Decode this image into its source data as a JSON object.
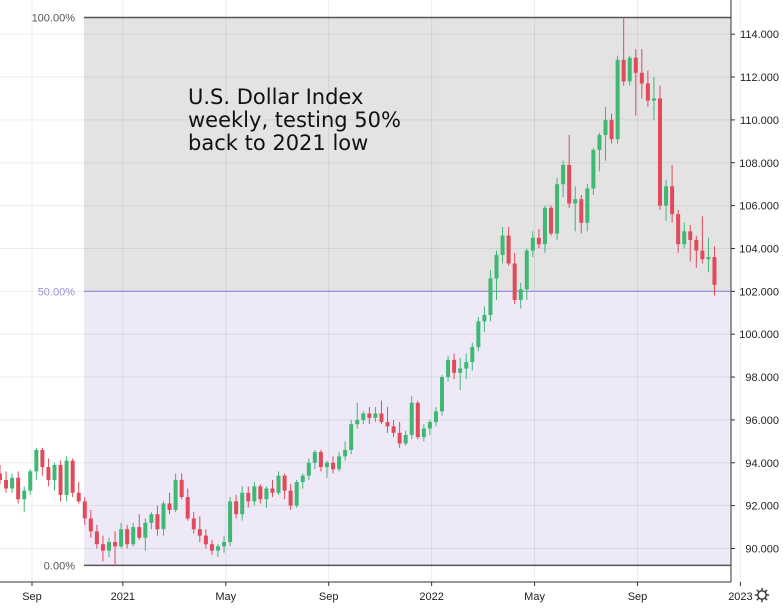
{
  "chart_data": {
    "type": "candlestick",
    "title": "",
    "annotation": "U.S. Dollar Index\nweekly, testing 50%\nback to 2021 low",
    "xlabel": "",
    "ylabel": "",
    "ylim": [
      89.0,
      117.0
    ],
    "grid": true,
    "y_ticks": [
      "90.000",
      "92.000",
      "94.000",
      "96.000",
      "98.000",
      "100.000",
      "102.000",
      "104.000",
      "106.000",
      "108.000",
      "110.000",
      "112.000",
      "114.000"
    ],
    "x_ticks": [
      {
        "label": "Sep",
        "i": 0
      },
      {
        "label": "2021",
        "i": 15
      },
      {
        "label": "May",
        "i": 32
      },
      {
        "label": "Sep",
        "i": 49
      },
      {
        "label": "2022",
        "i": 66
      },
      {
        "label": "May",
        "i": 83
      },
      {
        "label": "Sep",
        "i": 100
      },
      {
        "label": "2023",
        "i": 117
      }
    ],
    "fibonacci": {
      "levels": [
        {
          "label": "100.00%",
          "price": 114.78
        },
        {
          "label": "50.00%",
          "price": 102.0
        },
        {
          "label": "0.00%",
          "price": 89.21
        }
      ],
      "upper_zone_color": "#e3e3e3",
      "lower_zone_color": "#ede9f6",
      "line_color_ends": "#555555",
      "line_color_mid": "#9b8fd6"
    },
    "colors": {
      "up": "#3fb874",
      "down": "#e04a5b"
    },
    "candles": [
      [
        93.5,
        93.9,
        93.0,
        93.2
      ],
      [
        93.2,
        93.6,
        92.6,
        92.8
      ],
      [
        92.8,
        93.5,
        92.6,
        93.3
      ],
      [
        93.3,
        93.6,
        92.1,
        92.3
      ],
      [
        92.3,
        92.9,
        91.7,
        92.7
      ],
      [
        92.7,
        93.7,
        92.5,
        93.6
      ],
      [
        93.6,
        94.7,
        93.2,
        94.6
      ],
      [
        94.6,
        94.7,
        93.4,
        93.8
      ],
      [
        93.8,
        94.2,
        92.9,
        93.2
      ],
      [
        93.2,
        94.0,
        92.7,
        93.9
      ],
      [
        93.9,
        94.1,
        92.2,
        92.5
      ],
      [
        92.5,
        94.3,
        92.2,
        94.1
      ],
      [
        94.1,
        94.2,
        92.4,
        92.6
      ],
      [
        92.6,
        93.1,
        92.1,
        92.2
      ],
      [
        92.2,
        92.4,
        91.1,
        91.4
      ],
      [
        91.4,
        91.8,
        90.5,
        90.8
      ],
      [
        90.8,
        91.1,
        90.0,
        90.2
      ],
      [
        90.2,
        90.6,
        89.4,
        89.9
      ],
      [
        89.9,
        90.5,
        89.6,
        90.3
      ],
      [
        90.3,
        90.8,
        89.2,
        90.1
      ],
      [
        90.1,
        91.2,
        90.0,
        90.9
      ],
      [
        90.9,
        91.1,
        90.0,
        90.2
      ],
      [
        90.2,
        91.2,
        90.1,
        91.0
      ],
      [
        91.0,
        91.6,
        90.4,
        90.5
      ],
      [
        90.5,
        91.4,
        89.9,
        91.2
      ],
      [
        91.2,
        91.7,
        90.9,
        91.6
      ],
      [
        91.6,
        92.0,
        90.6,
        90.9
      ],
      [
        90.9,
        92.2,
        90.6,
        92.1
      ],
      [
        92.1,
        92.6,
        91.6,
        91.8
      ],
      [
        91.8,
        93.5,
        91.7,
        93.2
      ],
      [
        93.2,
        93.5,
        92.3,
        92.4
      ],
      [
        92.4,
        92.8,
        91.3,
        91.4
      ],
      [
        91.4,
        91.7,
        90.7,
        90.9
      ],
      [
        90.9,
        91.5,
        90.3,
        90.6
      ],
      [
        90.6,
        90.9,
        90.0,
        90.2
      ],
      [
        90.2,
        90.4,
        89.7,
        89.9
      ],
      [
        89.9,
        90.2,
        89.6,
        90.1
      ],
      [
        90.1,
        90.6,
        89.8,
        90.3
      ],
      [
        90.3,
        92.4,
        90.1,
        92.2
      ],
      [
        92.2,
        92.5,
        91.4,
        91.6
      ],
      [
        91.6,
        92.9,
        91.3,
        92.6
      ],
      [
        92.6,
        92.9,
        91.9,
        92.2
      ],
      [
        92.2,
        93.1,
        92.0,
        92.9
      ],
      [
        92.9,
        93.0,
        92.1,
        92.3
      ],
      [
        92.3,
        92.9,
        91.9,
        92.8
      ],
      [
        92.8,
        93.2,
        92.4,
        92.6
      ],
      [
        92.6,
        93.6,
        92.5,
        93.4
      ],
      [
        93.4,
        93.5,
        92.3,
        92.7
      ],
      [
        92.7,
        93.0,
        91.8,
        92.0
      ],
      [
        92.0,
        93.2,
        91.9,
        93.1
      ],
      [
        93.1,
        93.5,
        92.8,
        93.4
      ],
      [
        93.4,
        94.2,
        93.2,
        94.0
      ],
      [
        94.0,
        94.6,
        93.7,
        94.5
      ],
      [
        94.5,
        94.6,
        93.6,
        93.8
      ],
      [
        93.8,
        94.1,
        93.3,
        94.0
      ],
      [
        94.0,
        94.3,
        93.5,
        93.7
      ],
      [
        93.7,
        94.5,
        93.6,
        94.3
      ],
      [
        94.3,
        95.0,
        94.1,
        94.6
      ],
      [
        94.6,
        96.0,
        94.4,
        95.8
      ],
      [
        95.8,
        96.8,
        95.6,
        96.0
      ],
      [
        96.0,
        96.4,
        95.8,
        96.3
      ],
      [
        96.3,
        96.6,
        95.8,
        96.1
      ],
      [
        96.1,
        96.6,
        95.9,
        96.3
      ],
      [
        96.3,
        96.9,
        95.8,
        95.9
      ],
      [
        95.9,
        96.6,
        95.4,
        95.7
      ],
      [
        95.7,
        96.0,
        95.2,
        95.4
      ],
      [
        95.4,
        95.9,
        94.7,
        94.9
      ],
      [
        94.9,
        95.5,
        94.8,
        95.3
      ],
      [
        95.3,
        97.1,
        95.1,
        96.8
      ],
      [
        96.8,
        96.9,
        95.1,
        95.2
      ],
      [
        95.2,
        95.8,
        95.0,
        95.6
      ],
      [
        95.6,
        96.0,
        95.3,
        95.9
      ],
      [
        95.9,
        96.6,
        95.7,
        96.4
      ],
      [
        96.4,
        98.1,
        96.2,
        98.0
      ],
      [
        98.0,
        99.0,
        97.8,
        98.8
      ],
      [
        98.8,
        99.1,
        97.9,
        98.2
      ],
      [
        98.2,
        98.9,
        97.4,
        98.4
      ],
      [
        98.4,
        99.1,
        97.9,
        98.7
      ],
      [
        98.7,
        99.6,
        98.3,
        99.4
      ],
      [
        99.4,
        100.8,
        99.2,
        100.6
      ],
      [
        100.6,
        101.3,
        100.1,
        100.9
      ],
      [
        100.9,
        103.0,
        100.6,
        102.6
      ],
      [
        102.6,
        103.9,
        101.6,
        103.7
      ],
      [
        103.7,
        105.0,
        103.3,
        104.6
      ],
      [
        104.6,
        105.0,
        103.2,
        103.3
      ],
      [
        103.3,
        103.8,
        101.4,
        101.6
      ],
      [
        101.6,
        102.4,
        101.2,
        102.1
      ],
      [
        102.1,
        104.0,
        101.6,
        103.9
      ],
      [
        103.9,
        104.8,
        103.6,
        104.5
      ],
      [
        104.5,
        104.9,
        104.0,
        104.2
      ],
      [
        104.2,
        106.0,
        103.8,
        105.9
      ],
      [
        105.9,
        106.0,
        104.6,
        104.7
      ],
      [
        104.7,
        107.3,
        104.4,
        107.0
      ],
      [
        107.0,
        108.1,
        106.4,
        107.9
      ],
      [
        107.9,
        109.3,
        105.9,
        106.1
      ],
      [
        106.1,
        106.9,
        104.8,
        106.3
      ],
      [
        106.3,
        106.5,
        104.7,
        105.2
      ],
      [
        105.2,
        107.0,
        104.8,
        106.8
      ],
      [
        106.8,
        108.7,
        106.5,
        108.6
      ],
      [
        108.6,
        109.4,
        107.6,
        109.3
      ],
      [
        109.3,
        110.6,
        108.1,
        110.0
      ],
      [
        110.0,
        110.3,
        108.9,
        109.1
      ],
      [
        109.1,
        113.0,
        108.9,
        112.8
      ],
      [
        112.8,
        114.8,
        111.6,
        111.8
      ],
      [
        111.8,
        113.0,
        111.6,
        112.9
      ],
      [
        112.9,
        113.3,
        110.2,
        112.2
      ],
      [
        112.2,
        113.3,
        111.0,
        111.7
      ],
      [
        111.7,
        112.3,
        110.6,
        110.9
      ],
      [
        110.9,
        112.0,
        110.0,
        111.0
      ],
      [
        111.0,
        111.6,
        105.8,
        106.0
      ],
      [
        106.0,
        107.2,
        105.3,
        106.9
      ],
      [
        106.9,
        107.9,
        105.2,
        105.6
      ],
      [
        105.6,
        105.8,
        103.8,
        104.2
      ],
      [
        104.2,
        105.2,
        104.0,
        104.8
      ],
      [
        104.8,
        105.1,
        103.4,
        104.4
      ],
      [
        104.4,
        104.6,
        103.1,
        103.9
      ],
      [
        103.9,
        105.5,
        103.3,
        103.5
      ],
      [
        103.5,
        104.5,
        102.9,
        103.6
      ],
      [
        103.6,
        104.1,
        101.8,
        102.3
      ]
    ]
  }
}
